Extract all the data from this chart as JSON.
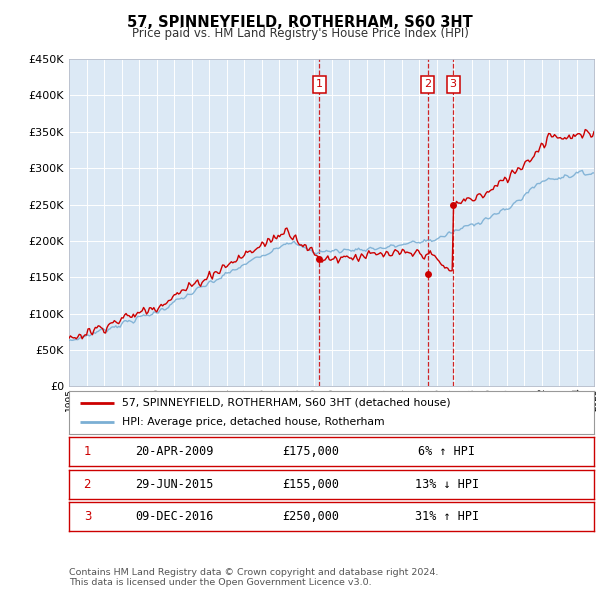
{
  "title": "57, SPINNEYFIELD, ROTHERHAM, S60 3HT",
  "subtitle": "Price paid vs. HM Land Registry's House Price Index (HPI)",
  "hpi_line_color": "#7bafd4",
  "price_line_color": "#cc0000",
  "plot_bg_color": "#dce9f5",
  "grid_color": "#c0d0e8",
  "legend_label_price": "57, SPINNEYFIELD, ROTHERHAM, S60 3HT (detached house)",
  "legend_label_hpi": "HPI: Average price, detached house, Rotherham",
  "transactions": [
    {
      "label": "1",
      "date_str": "20-APR-2009",
      "price": 175000,
      "pct": "6%",
      "direction": "↑",
      "x_year": 2009.3
    },
    {
      "label": "2",
      "date_str": "29-JUN-2015",
      "price": 155000,
      "pct": "13%",
      "direction": "↓",
      "x_year": 2015.5
    },
    {
      "label": "3",
      "date_str": "09-DEC-2016",
      "price": 250000,
      "pct": "31%",
      "direction": "↑",
      "x_year": 2016.95
    }
  ],
  "footer": "Contains HM Land Registry data © Crown copyright and database right 2024.\nThis data is licensed under the Open Government Licence v3.0.",
  "ylim": [
    0,
    450000
  ],
  "xlim_start": 1995,
  "xlim_end": 2025
}
